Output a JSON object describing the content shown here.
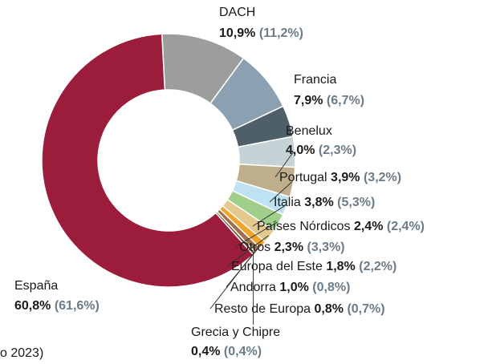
{
  "chart_data": {
    "type": "donut",
    "categories": [
      "DACH",
      "Francia",
      "Benelux",
      "Portugal",
      "Italia",
      "Países Nórdicos",
      "Otros",
      "Europa del Este",
      "Andorra",
      "Resto de Europa",
      "Grecia y Chipre",
      "España"
    ],
    "values": [
      10.9,
      7.9,
      4.0,
      3.9,
      3.8,
      2.4,
      2.3,
      1.8,
      1.0,
      0.8,
      0.4,
      60.8
    ],
    "value_labels": [
      "10,9%",
      "7,9%",
      "4,0%",
      "3,9%",
      "3,8%",
      "2,4%",
      "2,3%",
      "1,8%",
      "1,0%",
      "0,8%",
      "0,4%",
      "60,8%"
    ],
    "prev_values": [
      11.2,
      6.7,
      2.3,
      3.2,
      5.3,
      2.4,
      3.3,
      2.2,
      0.8,
      0.7,
      0.4,
      61.6
    ],
    "prev_value_labels": [
      "(11,2%)",
      "(6,7%)",
      "(2,3%)",
      "(3,2%)",
      "(5,3%)",
      "(2,4%)",
      "(3,3%)",
      "(2,2%)",
      "(0,8%)",
      "(0,7%)",
      "(0,4%)",
      "(61,6%)"
    ],
    "colors": [
      "#9c9e9e",
      "#8ba1b1",
      "#4e5f6a",
      "#c6d3d6",
      "#bfae8b",
      "#bfe2f2",
      "#9fcf8a",
      "#e3c98f",
      "#f2a32a",
      "#a0704a",
      "#6b4a2f",
      "#9b1d3b"
    ],
    "note": "o 2023)"
  }
}
